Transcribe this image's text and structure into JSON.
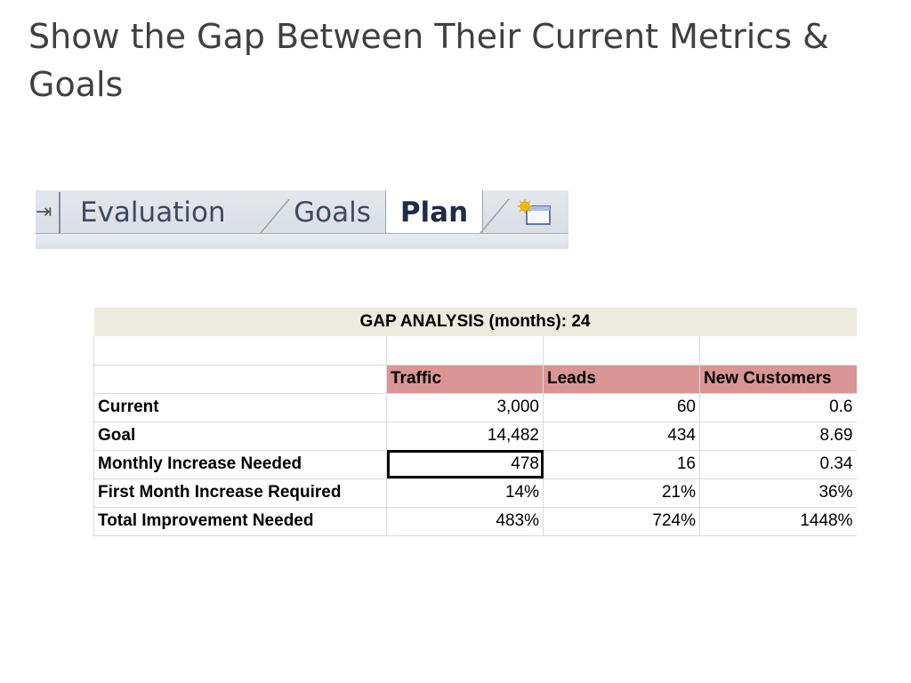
{
  "slide": {
    "title": "Show the Gap Between Their Current Metrics & Goals"
  },
  "tabs": {
    "nav_glyph": "⇥",
    "items": [
      "Evaluation",
      "Goals",
      "Plan"
    ],
    "active": "Plan",
    "new_sheet_icon": "insert-worksheet-icon"
  },
  "gap_analysis": {
    "title": "GAP ANALYSIS (months):  24",
    "columns": [
      "Traffic",
      "Leads",
      "New Customers"
    ],
    "rows": [
      {
        "label": "Current",
        "values": [
          "3,000",
          "60",
          "0.6"
        ]
      },
      {
        "label": "Goal",
        "values": [
          "14,482",
          "434",
          "8.69"
        ]
      },
      {
        "label": "Monthly Increase Needed",
        "values": [
          "478",
          "16",
          "0.34"
        ]
      },
      {
        "label": "First Month Increase Required",
        "values": [
          "14%",
          "21%",
          "36%"
        ]
      },
      {
        "label": "Total Improvement Needed",
        "values": [
          "483%",
          "724%",
          "1448%"
        ]
      }
    ],
    "header_color": "#d99694",
    "title_color": "#ecebdd"
  }
}
